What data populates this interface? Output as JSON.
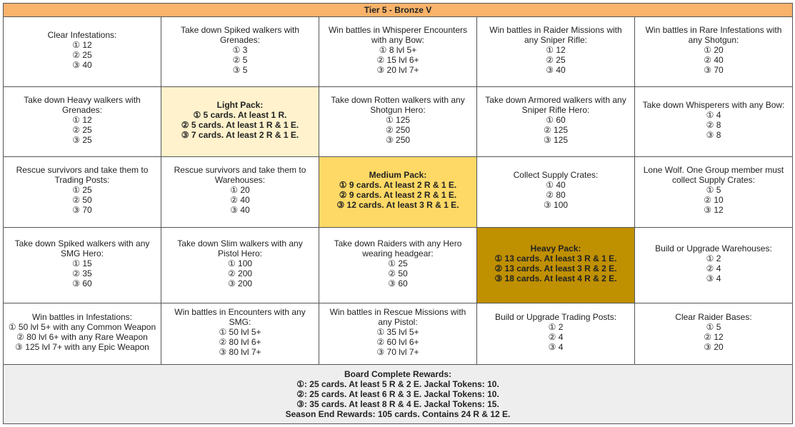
{
  "header": {
    "title": "Tier 5 - Bronze V"
  },
  "grid": {
    "rows": [
      [
        {
          "title": "Clear Infestations:",
          "lines": [
            "① 12",
            "② 25",
            "③ 40"
          ]
        },
        {
          "title": "Take down Spiked walkers with Grenades:",
          "lines": [
            "① 3",
            "② 5",
            "③ 5"
          ]
        },
        {
          "title": "Win battles in Whisperer Encounters with any Bow:",
          "lines": [
            "① 8 lvl 5+",
            "② 15 lvl 6+",
            "③ 20 lvl 7+"
          ]
        },
        {
          "title": "Win battles in Raider Missions with any Sniper Rifle:",
          "lines": [
            "① 12",
            "② 25",
            "③ 40"
          ]
        },
        {
          "title": "Win battles in Rare Infestations with any Shotgun:",
          "lines": [
            "① 20",
            "② 40",
            "③ 70"
          ]
        }
      ],
      [
        {
          "title": "Take down Heavy walkers with Grenades:",
          "lines": [
            "① 12",
            "② 25",
            "③ 25"
          ]
        },
        {
          "title": "Light Pack:",
          "lines": [
            "① 5 cards. At least 1 R.",
            "② 5 cards. At least 1 R & 1 E.",
            "③ 7 cards. At least 2 R & 1 E."
          ]
        },
        {
          "title": "Take down Rotten walkers with any Shotgun Hero:",
          "lines": [
            "① 125",
            "② 250",
            "③ 250"
          ]
        },
        {
          "title": "Take down Armored walkers with any Sniper Rifle Hero:",
          "lines": [
            "① 60",
            "② 125",
            "③ 125"
          ]
        },
        {
          "title": "Take down Whisperers with any Bow:",
          "lines": [
            "① 4",
            "② 8",
            "③ 8"
          ]
        }
      ],
      [
        {
          "title": "Rescue survivors and take them to Trading Posts:",
          "lines": [
            "① 25",
            "② 50",
            "③ 70"
          ]
        },
        {
          "title": "Rescue survivors and take them to Warehouses:",
          "lines": [
            "① 20",
            "② 40",
            "③ 40"
          ]
        },
        {
          "title": "Medium Pack:",
          "lines": [
            "① 9 cards. At least 2 R & 1 E.",
            "② 9 cards. At least 2 R & 1 E.",
            "③ 12 cards. At least 3 R & 1 E."
          ]
        },
        {
          "title": "Collect Supply Crates:",
          "lines": [
            "① 40",
            "② 80",
            "③ 100"
          ]
        },
        {
          "title": "Lone Wolf. One Group member must collect Supply Crates:",
          "lines": [
            "① 5",
            "② 10",
            "③ 12"
          ]
        }
      ],
      [
        {
          "title": "Take down Spiked walkers with any SMG Hero:",
          "lines": [
            "① 15",
            "② 35",
            "③ 60"
          ]
        },
        {
          "title": "Take down Slim walkers with any Pistol Hero:",
          "lines": [
            "① 100",
            "② 200",
            "③ 200"
          ]
        },
        {
          "title": "Take down Raiders with any Hero wearing headgear:",
          "lines": [
            "① 25",
            "② 50",
            "③ 60"
          ]
        },
        {
          "title": "Heavy Pack:",
          "lines": [
            "① 13 cards. At least 3 R & 1 E.",
            "② 13 cards. At least 3 R & 2 E.",
            "③ 18 cards. At least 4 R & 2 E."
          ]
        },
        {
          "title": "Build or Upgrade Warehouses:",
          "lines": [
            "① 2",
            "② 4",
            "③ 4"
          ]
        }
      ],
      [
        {
          "title": "Win battles in Infestations:",
          "lines": [
            "① 50 lvl 5+ with any Common Weapon",
            "② 80 lvl 6+ with any Rare Weapon",
            "③ 125 lvl 7+ with any Epic Weapon"
          ]
        },
        {
          "title": "Win battles in Encounters with any SMG:",
          "lines": [
            "① 50 lvl 5+",
            "② 80 lvl 6+",
            "③ 80 lvl 7+"
          ]
        },
        {
          "title": "Win battles in Rescue Missions with any Pistol:",
          "lines": [
            "① 35 lvl 5+",
            "② 60 lvl 6+",
            "③ 70 lvl 7+"
          ]
        },
        {
          "title": "Build or Upgrade Trading Posts:",
          "lines": [
            "① 2",
            "② 4",
            "③ 4"
          ]
        },
        {
          "title": "Clear Raider Bases:",
          "lines": [
            "① 5",
            "② 12",
            "③ 20"
          ]
        }
      ]
    ]
  },
  "footer": {
    "title": "Board Complete Rewards:",
    "lines": [
      "①: 25 cards. At least 5 R & 2 E. Jackal Tokens: 10.",
      "②: 25 cards. At least 6 R & 3 E. Jackal Tokens: 10.",
      "③: 35 cards. At least 8 R & 4 E. Jackal Tokens: 15.",
      "Season End Rewards: 105 cards. Contains 24 R & 12 E."
    ]
  }
}
